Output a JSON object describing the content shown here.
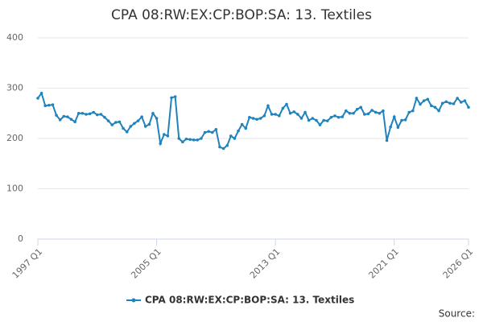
{
  "chart_data": {
    "type": "line",
    "title": "CPA 08:RW:EX:CP:BOP:SA: 13. Textiles",
    "source": "Source:",
    "categories": [
      "1997 Q1",
      null,
      null,
      null,
      null,
      null,
      null,
      null,
      null,
      null,
      null,
      null,
      null,
      null,
      null,
      null,
      null,
      null,
      null,
      null,
      null,
      null,
      null,
      null,
      null,
      null,
      null,
      null,
      null,
      null,
      null,
      null,
      "2005 Q1",
      null,
      null,
      null,
      null,
      null,
      null,
      null,
      null,
      null,
      null,
      null,
      null,
      null,
      null,
      null,
      null,
      null,
      null,
      null,
      null,
      null,
      null,
      null,
      null,
      null,
      null,
      null,
      null,
      null,
      null,
      null,
      "2013 Q1",
      null,
      null,
      null,
      null,
      null,
      null,
      null,
      null,
      null,
      null,
      null,
      null,
      null,
      null,
      null,
      null,
      null,
      null,
      null,
      null,
      null,
      null,
      null,
      null,
      null,
      null,
      null,
      null,
      null,
      null,
      null,
      "2021 Q1",
      null,
      null,
      null,
      null,
      null,
      null,
      null,
      null,
      null,
      null,
      null,
      null,
      null,
      null,
      null,
      null,
      null,
      null,
      null,
      "2026 Q1"
    ],
    "series": [
      {
        "name": "CPA 08:RW:EX:CP:BOP:SA: 13. Textiles",
        "color": "#2083bd",
        "values": [
          280,
          290,
          265,
          266,
          267,
          246,
          237,
          244,
          243,
          238,
          233,
          250,
          250,
          248,
          249,
          252,
          247,
          248,
          242,
          235,
          227,
          232,
          233,
          220,
          213,
          224,
          230,
          235,
          243,
          224,
          228,
          250,
          240,
          190,
          208,
          205,
          281,
          283,
          200,
          193,
          199,
          198,
          197,
          197,
          200,
          212,
          214,
          212,
          218,
          183,
          180,
          186,
          205,
          200,
          215,
          228,
          220,
          242,
          240,
          238,
          240,
          245,
          265,
          248,
          248,
          245,
          260,
          268,
          250,
          253,
          248,
          240,
          252,
          236,
          240,
          236,
          227,
          236,
          235,
          242,
          245,
          242,
          243,
          255,
          250,
          250,
          258,
          262,
          248,
          249,
          256,
          252,
          250,
          255,
          196,
          223,
          243,
          222,
          236,
          237,
          252,
          255,
          280,
          268,
          275,
          278,
          265,
          262,
          255,
          270,
          273,
          270,
          269,
          280,
          272,
          275,
          262
        ]
      }
    ],
    "ylim": [
      0,
      400
    ],
    "yticks": [
      0,
      100,
      200,
      300,
      400
    ],
    "grid": true
  }
}
